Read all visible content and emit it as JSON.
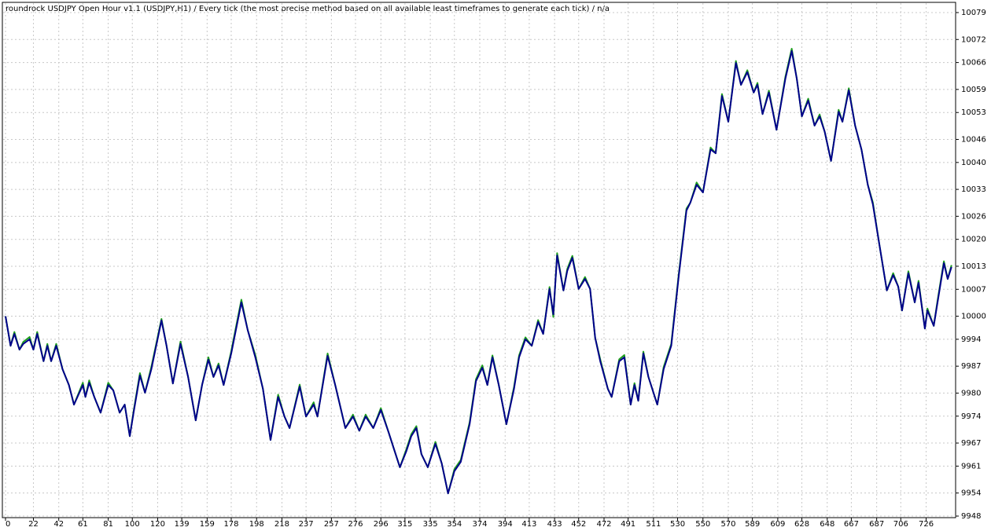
{
  "chart_data": {
    "type": "line",
    "title": "roundrock USDJPY Open Hour v1.1 (USDJPY,H1) / Every tick (the most precise method based on all available least timeframes to generate each tick) / n/a",
    "x": [
      0,
      4,
      7,
      11,
      14,
      19,
      22,
      25,
      30,
      33,
      36,
      40,
      45,
      50,
      54,
      61,
      63,
      66,
      70,
      75,
      81,
      85,
      90,
      94,
      98,
      101,
      106,
      110,
      115,
      123,
      127,
      132,
      138,
      144,
      150,
      155,
      160,
      164,
      168,
      172,
      178,
      186,
      191,
      197,
      203,
      209,
      215,
      220,
      224,
      232,
      237,
      243,
      246,
      254,
      260,
      268,
      274,
      279,
      284,
      290,
      296,
      302,
      306,
      311,
      316,
      320,
      324,
      328,
      333,
      339,
      344,
      349,
      354,
      359,
      366,
      371,
      376,
      380,
      384,
      389,
      395,
      401,
      405,
      410,
      415,
      420,
      424,
      429,
      432,
      435,
      440,
      443,
      447,
      452,
      457,
      461,
      465,
      469,
      475,
      478,
      484,
      488,
      493,
      496,
      499,
      503,
      507,
      514,
      519,
      525,
      531,
      537,
      540,
      545,
      550,
      556,
      560,
      565,
      570,
      576,
      580,
      585,
      590,
      593,
      597,
      602,
      608,
      615,
      620,
      624,
      628,
      633,
      638,
      642,
      646,
      651,
      657,
      660,
      665,
      670,
      675,
      680,
      684,
      689,
      695,
      700,
      704,
      707,
      712,
      717,
      720,
      725,
      727,
      732,
      735,
      740,
      743,
      746
    ],
    "series": [
      {
        "color": "#00008b",
        "values": [
          10000,
          9992.3,
          9995.4,
          9991.3,
          9992.8,
          9994,
          9991.3,
          9995.4,
          9988.3,
          9992.3,
          9988.3,
          9992.3,
          9986.2,
          9982.1,
          9977,
          9982.1,
          9979,
          9982.7,
          9979,
          9974.9,
          9982.1,
          9980.7,
          9974.9,
          9977,
          9968.8,
          9974.9,
          9984.6,
          9980.1,
          9986.2,
          9998.9,
          9992.3,
          9982.5,
          9992.8,
          9984.2,
          9972.9,
          9982.1,
          9988.7,
          9984.2,
          9987.2,
          9982.1,
          9990.3,
          10003.6,
          9996.4,
          9989.3,
          9981.1,
          9967.8,
          9979,
          9973.9,
          9970.9,
          9981.7,
          9973.9,
          9977,
          9973.9,
          9989.7,
          9982.1,
          9970.9,
          9973.9,
          9970.2,
          9973.9,
          9970.9,
          9975.6,
          9969.9,
          9965.8,
          9960.7,
          9964.8,
          9968.8,
          9970.9,
          9964.1,
          9960.7,
          9966.8,
          9961.7,
          9953.9,
          9959.7,
          9962.1,
          9971.9,
          9983.1,
          9986.6,
          9982.1,
          9989.3,
          9982.1,
          9971.9,
          9981.1,
          9989.3,
          9994,
          9992.3,
          9998.5,
          9995.4,
          10007.1,
          10000.5,
          10015.8,
          10006.7,
          10011.8,
          10015.2,
          10007.1,
          10009.7,
          10007.1,
          9994.4,
          9988.3,
          9981.1,
          9979,
          9988.3,
          9989.3,
          9977,
          9982.1,
          9978,
          9990.3,
          9984.2,
          9977,
          9986.2,
          9992.3,
          10010.7,
          10027.5,
          10029.5,
          10034.2,
          10032.2,
          10043.4,
          10042.4,
          10057.3,
          10050.6,
          10065.9,
          10060.2,
          10063.5,
          10058.2,
          10060.2,
          10052.6,
          10058.2,
          10048.5,
          10061.8,
          10069,
          10061.8,
          10052,
          10056.1,
          10049.6,
          10052,
          10048,
          10040.4,
          10053.2,
          10050.6,
          10058.8,
          10049.6,
          10043.4,
          10034.2,
          10029.1,
          10018.9,
          10006.7,
          10010.7,
          10007.7,
          10001.5,
          10011.2,
          10003.6,
          10008.7,
          9996.8,
          10001.5,
          9997.5,
          10003.6,
          10013.8,
          10009.7,
          10012.8
        ]
      },
      {
        "color": "#1e9e1e",
        "values": [
          10000,
          9992.3,
          9995.9,
          9991.3,
          9993.3,
          9994.6,
          9991.3,
          9995.9,
          9988.3,
          9992.8,
          9988.3,
          9992.8,
          9986.2,
          9982.1,
          9977,
          9982.7,
          9979,
          9983.3,
          9979,
          9974.9,
          9982.7,
          9980.7,
          9974.9,
          9977,
          9968.8,
          9975.3,
          9985.2,
          9980.1,
          9986.8,
          9999.3,
          9992.3,
          9982.5,
          9993.4,
          9984.2,
          9972.9,
          9982.1,
          9989.3,
          9984.2,
          9987.7,
          9982.1,
          9990.9,
          10004.3,
          9996.4,
          9989.9,
          9981.1,
          9967.8,
          9979.6,
          9973.9,
          9970.9,
          9982.2,
          9973.9,
          9977.6,
          9973.9,
          9990.3,
          9982.1,
          9970.9,
          9974.4,
          9970.2,
          9974.4,
          9970.9,
          9976.1,
          9969.9,
          9965.8,
          9960.7,
          9965.3,
          9969.3,
          9971.4,
          9964.1,
          9960.7,
          9967.3,
          9961.7,
          9953.9,
          9960.2,
          9962.6,
          9972.4,
          9983.6,
          9987.2,
          9982.1,
          9989.8,
          9982.1,
          9971.9,
          9981.6,
          9989.8,
          9994.5,
          9992.3,
          9999,
          9995.4,
          10007.6,
          9999.8,
          10016.4,
          10006.7,
          10012.3,
          10015.7,
          10007.1,
          10010.2,
          10007.1,
          9994.4,
          9988.8,
          9981.1,
          9979,
          9988.8,
          9989.9,
          9977,
          9982.6,
          9978,
          9990.8,
          9984.2,
          9977,
          9986.8,
          9992.8,
          10011.2,
          10028,
          10029.5,
          10034.8,
          10032.2,
          10043.9,
          10042.4,
          10057.8,
          10050.6,
          10066.4,
          10060.2,
          10064,
          10058.2,
          10060.7,
          10052.6,
          10058.7,
          10048.5,
          10062.3,
          10069.6,
          10061.8,
          10052,
          10056.6,
          10049.6,
          10052.5,
          10048,
          10040.4,
          10053.7,
          10050.6,
          10059.3,
          10049.6,
          10043.4,
          10034.2,
          10029.6,
          10018.9,
          10006.7,
          10011.2,
          10007.7,
          10001.5,
          10011.7,
          10003.6,
          10009.2,
          9996.8,
          10002,
          9997.5,
          10004.1,
          10014.3,
          10009.7,
          10013.3
        ]
      }
    ],
    "xlim": [
      0,
      748
    ],
    "ylim": [
      9948,
      10079
    ],
    "xticks": [
      0,
      22,
      42,
      61,
      81,
      100,
      120,
      139,
      159,
      178,
      198,
      218,
      237,
      257,
      276,
      296,
      315,
      335,
      354,
      374,
      394,
      413,
      433,
      452,
      472,
      491,
      511,
      530,
      550,
      570,
      589,
      609,
      628,
      648,
      667,
      687,
      706,
      726
    ],
    "yticks": [
      9948,
      9954,
      9961,
      9967,
      9974,
      9980,
      9987,
      9994,
      10000,
      10007,
      10013,
      10020,
      10026,
      10033,
      10040,
      10046,
      10053,
      10059,
      10066,
      10072,
      10079
    ],
    "grid": true
  }
}
